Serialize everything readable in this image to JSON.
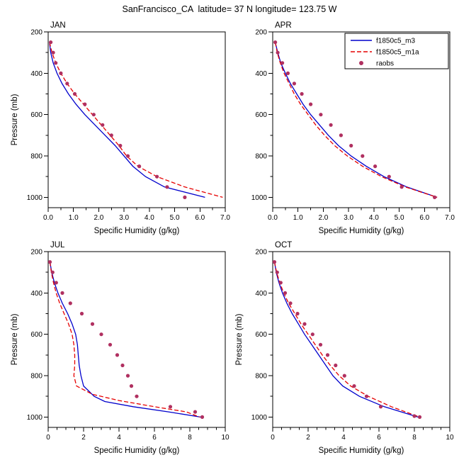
{
  "page": {
    "title": "SanFrancisco_CA  latitude= 37 N longitude= 123.75 W"
  },
  "colors": {
    "model_m3": "#0000CC",
    "model_m1a": "#E60000",
    "raobs": "#B03060",
    "axis": "#000000",
    "background": "#FFFFFF"
  },
  "legend": {
    "entries": [
      "f1850c5_m3",
      "f1850c5_m1a",
      "raobs"
    ]
  },
  "chart_data": [
    {
      "type": "line",
      "title": "JAN",
      "xlabel": "Specific Humidity (g/kg)",
      "ylabel": "Pressure (mb)",
      "show_ylabel": true,
      "show_legend": false,
      "xlim": [
        0,
        7
      ],
      "xticks": [
        0,
        1,
        2,
        3,
        4,
        5,
        6,
        7
      ],
      "xtick_labels": [
        "0.0",
        "1.0",
        "2.0",
        "3.0",
        "4.0",
        "5.0",
        "6.0",
        "7.0"
      ],
      "x_minor_step": 0.5,
      "ylim": [
        200,
        1050
      ],
      "yticks": [
        200,
        400,
        600,
        800,
        1000
      ],
      "ytick_labels": [
        "200",
        "400",
        "600",
        "800",
        "1000"
      ],
      "y_minor_step": 100,
      "grid": false,
      "series": [
        {
          "name": "f1850c5_m3",
          "kind": "line",
          "color": "#0000CC",
          "dash": "",
          "points": [
            [
              0.05,
              250
            ],
            [
              0.1,
              300
            ],
            [
              0.2,
              350
            ],
            [
              0.35,
              400
            ],
            [
              0.55,
              450
            ],
            [
              0.8,
              500
            ],
            [
              1.1,
              550
            ],
            [
              1.45,
              600
            ],
            [
              1.85,
              650
            ],
            [
              2.25,
              700
            ],
            [
              2.65,
              750
            ],
            [
              3.0,
              800
            ],
            [
              3.35,
              850
            ],
            [
              3.85,
              900
            ],
            [
              4.6,
              950
            ],
            [
              6.2,
              1000
            ]
          ]
        },
        {
          "name": "f1850c5_m1a",
          "kind": "line",
          "color": "#E60000",
          "dash": "6,3",
          "points": [
            [
              0.05,
              250
            ],
            [
              0.15,
              300
            ],
            [
              0.3,
              350
            ],
            [
              0.5,
              400
            ],
            [
              0.75,
              450
            ],
            [
              1.05,
              500
            ],
            [
              1.4,
              550
            ],
            [
              1.75,
              600
            ],
            [
              2.1,
              650
            ],
            [
              2.45,
              700
            ],
            [
              2.8,
              750
            ],
            [
              3.1,
              800
            ],
            [
              3.55,
              850
            ],
            [
              4.3,
              900
            ],
            [
              5.4,
              950
            ],
            [
              6.9,
              1000
            ]
          ]
        },
        {
          "name": "raobs",
          "kind": "scatter",
          "color": "#B03060",
          "dash": "",
          "points": [
            [
              0.1,
              250
            ],
            [
              0.2,
              300
            ],
            [
              0.3,
              350
            ],
            [
              0.5,
              400
            ],
            [
              0.75,
              450
            ],
            [
              1.05,
              500
            ],
            [
              1.45,
              550
            ],
            [
              1.8,
              600
            ],
            [
              2.15,
              650
            ],
            [
              2.5,
              700
            ],
            [
              2.85,
              750
            ],
            [
              3.15,
              800
            ],
            [
              3.6,
              850
            ],
            [
              4.3,
              900
            ],
            [
              4.7,
              950
            ],
            [
              5.4,
              1000
            ]
          ]
        }
      ]
    },
    {
      "type": "line",
      "title": "APR",
      "xlabel": "Specific Humidity (g/kg)",
      "ylabel": "Pressure (mb)",
      "show_ylabel": false,
      "show_legend": true,
      "xlim": [
        0,
        7
      ],
      "xticks": [
        0,
        1,
        2,
        3,
        4,
        5,
        6,
        7
      ],
      "xtick_labels": [
        "0.0",
        "1.0",
        "2.0",
        "3.0",
        "4.0",
        "5.0",
        "6.0",
        "7.0"
      ],
      "x_minor_step": 0.5,
      "ylim": [
        200,
        1050
      ],
      "yticks": [
        200,
        400,
        600,
        800,
        1000
      ],
      "ytick_labels": [
        "200",
        "400",
        "600",
        "800",
        "1000"
      ],
      "y_minor_step": 100,
      "grid": false,
      "series": [
        {
          "name": "f1850c5_m3",
          "kind": "line",
          "color": "#0000CC",
          "dash": "",
          "points": [
            [
              0.1,
              250
            ],
            [
              0.2,
              300
            ],
            [
              0.32,
              350
            ],
            [
              0.5,
              400
            ],
            [
              0.7,
              450
            ],
            [
              0.95,
              500
            ],
            [
              1.2,
              550
            ],
            [
              1.5,
              600
            ],
            [
              1.85,
              650
            ],
            [
              2.2,
              700
            ],
            [
              2.6,
              750
            ],
            [
              3.1,
              800
            ],
            [
              3.7,
              850
            ],
            [
              4.4,
              900
            ],
            [
              5.3,
              950
            ],
            [
              6.5,
              1000
            ]
          ]
        },
        {
          "name": "f1850c5_m1a",
          "kind": "line",
          "color": "#E60000",
          "dash": "6,3",
          "points": [
            [
              0.1,
              250
            ],
            [
              0.18,
              300
            ],
            [
              0.3,
              350
            ],
            [
              0.45,
              400
            ],
            [
              0.65,
              450
            ],
            [
              0.85,
              500
            ],
            [
              1.1,
              550
            ],
            [
              1.4,
              600
            ],
            [
              1.7,
              650
            ],
            [
              2.05,
              700
            ],
            [
              2.45,
              750
            ],
            [
              2.95,
              800
            ],
            [
              3.55,
              850
            ],
            [
              4.3,
              900
            ],
            [
              5.25,
              950
            ],
            [
              6.5,
              1000
            ]
          ]
        },
        {
          "name": "raobs",
          "kind": "scatter",
          "color": "#B03060",
          "dash": "",
          "points": [
            [
              0.1,
              250
            ],
            [
              0.2,
              300
            ],
            [
              0.38,
              350
            ],
            [
              0.6,
              400
            ],
            [
              0.85,
              450
            ],
            [
              1.15,
              500
            ],
            [
              1.5,
              550
            ],
            [
              1.9,
              600
            ],
            [
              2.3,
              650
            ],
            [
              2.7,
              700
            ],
            [
              3.1,
              750
            ],
            [
              3.55,
              800
            ],
            [
              4.05,
              850
            ],
            [
              4.6,
              900
            ],
            [
              5.1,
              950
            ],
            [
              6.4,
              1000
            ]
          ]
        }
      ]
    },
    {
      "type": "line",
      "title": "JUL",
      "xlabel": "Specific Humidity (g/kg)",
      "ylabel": "Pressure (mb)",
      "show_ylabel": true,
      "show_legend": false,
      "xlim": [
        0,
        10
      ],
      "xticks": [
        0,
        2,
        4,
        6,
        8,
        10
      ],
      "xtick_labels": [
        "0",
        "2",
        "4",
        "6",
        "8",
        "10"
      ],
      "x_minor_step": 0.5,
      "ylim": [
        200,
        1050
      ],
      "yticks": [
        200,
        400,
        600,
        800,
        1000
      ],
      "ytick_labels": [
        "200",
        "400",
        "600",
        "800",
        "1000"
      ],
      "y_minor_step": 100,
      "grid": false,
      "series": [
        {
          "name": "f1850c5_m3",
          "kind": "line",
          "color": "#0000CC",
          "dash": "",
          "points": [
            [
              0.1,
              250
            ],
            [
              0.2,
              300
            ],
            [
              0.35,
              350
            ],
            [
              0.55,
              400
            ],
            [
              0.8,
              450
            ],
            [
              1.1,
              500
            ],
            [
              1.35,
              550
            ],
            [
              1.55,
              600
            ],
            [
              1.65,
              650
            ],
            [
              1.7,
              700
            ],
            [
              1.75,
              750
            ],
            [
              1.85,
              800
            ],
            [
              2.0,
              850
            ],
            [
              2.6,
              900
            ],
            [
              3.2,
              925
            ],
            [
              4.8,
              950
            ],
            [
              6.8,
              975
            ],
            [
              8.6,
              1000
            ]
          ]
        },
        {
          "name": "f1850c5_m1a",
          "kind": "line",
          "color": "#E60000",
          "dash": "6,3",
          "points": [
            [
              0.1,
              250
            ],
            [
              0.18,
              300
            ],
            [
              0.3,
              350
            ],
            [
              0.45,
              400
            ],
            [
              0.65,
              450
            ],
            [
              0.9,
              500
            ],
            [
              1.15,
              550
            ],
            [
              1.35,
              600
            ],
            [
              1.45,
              650
            ],
            [
              1.5,
              700
            ],
            [
              1.5,
              750
            ],
            [
              1.45,
              800
            ],
            [
              1.6,
              850
            ],
            [
              2.5,
              890
            ],
            [
              4.0,
              920
            ],
            [
              6.0,
              950
            ],
            [
              7.8,
              975
            ],
            [
              8.55,
              1000
            ]
          ]
        },
        {
          "name": "raobs",
          "kind": "scatter",
          "color": "#B03060",
          "dash": "",
          "points": [
            [
              0.1,
              250
            ],
            [
              0.25,
              300
            ],
            [
              0.45,
              350
            ],
            [
              0.8,
              400
            ],
            [
              1.25,
              450
            ],
            [
              1.9,
              500
            ],
            [
              2.5,
              550
            ],
            [
              3.0,
              600
            ],
            [
              3.5,
              650
            ],
            [
              3.9,
              700
            ],
            [
              4.2,
              750
            ],
            [
              4.5,
              800
            ],
            [
              4.7,
              850
            ],
            [
              5.0,
              900
            ],
            [
              6.9,
              950
            ],
            [
              8.3,
              975
            ],
            [
              8.7,
              1000
            ]
          ]
        }
      ]
    },
    {
      "type": "line",
      "title": "OCT",
      "xlabel": "Specific Humidity (g/kg)",
      "ylabel": "Pressure (mb)",
      "show_ylabel": true,
      "show_legend": false,
      "xlim": [
        0,
        10
      ],
      "xticks": [
        0,
        2,
        4,
        6,
        8,
        10
      ],
      "xtick_labels": [
        "0",
        "2",
        "4",
        "6",
        "8",
        "10"
      ],
      "x_minor_step": 0.5,
      "ylim": [
        200,
        1050
      ],
      "yticks": [
        200,
        400,
        600,
        800,
        1000
      ],
      "ytick_labels": [
        "200",
        "400",
        "600",
        "800",
        "1000"
      ],
      "y_minor_step": 100,
      "grid": false,
      "series": [
        {
          "name": "f1850c5_m3",
          "kind": "line",
          "color": "#0000CC",
          "dash": "",
          "points": [
            [
              0.1,
              250
            ],
            [
              0.2,
              300
            ],
            [
              0.35,
              350
            ],
            [
              0.55,
              400
            ],
            [
              0.8,
              450
            ],
            [
              1.1,
              500
            ],
            [
              1.45,
              550
            ],
            [
              1.8,
              600
            ],
            [
              2.2,
              650
            ],
            [
              2.6,
              700
            ],
            [
              3.0,
              750
            ],
            [
              3.4,
              800
            ],
            [
              3.95,
              850
            ],
            [
              4.9,
              900
            ],
            [
              6.3,
              950
            ],
            [
              8.2,
              1000
            ]
          ]
        },
        {
          "name": "f1850c5_m1a",
          "kind": "line",
          "color": "#E60000",
          "dash": "6,3",
          "points": [
            [
              0.1,
              250
            ],
            [
              0.22,
              300
            ],
            [
              0.4,
              350
            ],
            [
              0.62,
              400
            ],
            [
              0.9,
              450
            ],
            [
              1.25,
              500
            ],
            [
              1.6,
              550
            ],
            [
              2.0,
              600
            ],
            [
              2.4,
              650
            ],
            [
              2.8,
              700
            ],
            [
              3.25,
              750
            ],
            [
              3.75,
              800
            ],
            [
              4.4,
              850
            ],
            [
              5.4,
              900
            ],
            [
              6.7,
              950
            ],
            [
              8.3,
              1000
            ]
          ]
        },
        {
          "name": "raobs",
          "kind": "scatter",
          "color": "#B03060",
          "dash": "",
          "points": [
            [
              0.1,
              250
            ],
            [
              0.25,
              300
            ],
            [
              0.45,
              350
            ],
            [
              0.7,
              400
            ],
            [
              1.0,
              450
            ],
            [
              1.4,
              500
            ],
            [
              1.8,
              550
            ],
            [
              2.25,
              600
            ],
            [
              2.7,
              650
            ],
            [
              3.1,
              700
            ],
            [
              3.55,
              750
            ],
            [
              4.05,
              800
            ],
            [
              4.6,
              850
            ],
            [
              5.3,
              900
            ],
            [
              6.1,
              950
            ],
            [
              8.0,
              995
            ],
            [
              8.3,
              1000
            ]
          ]
        }
      ]
    }
  ]
}
